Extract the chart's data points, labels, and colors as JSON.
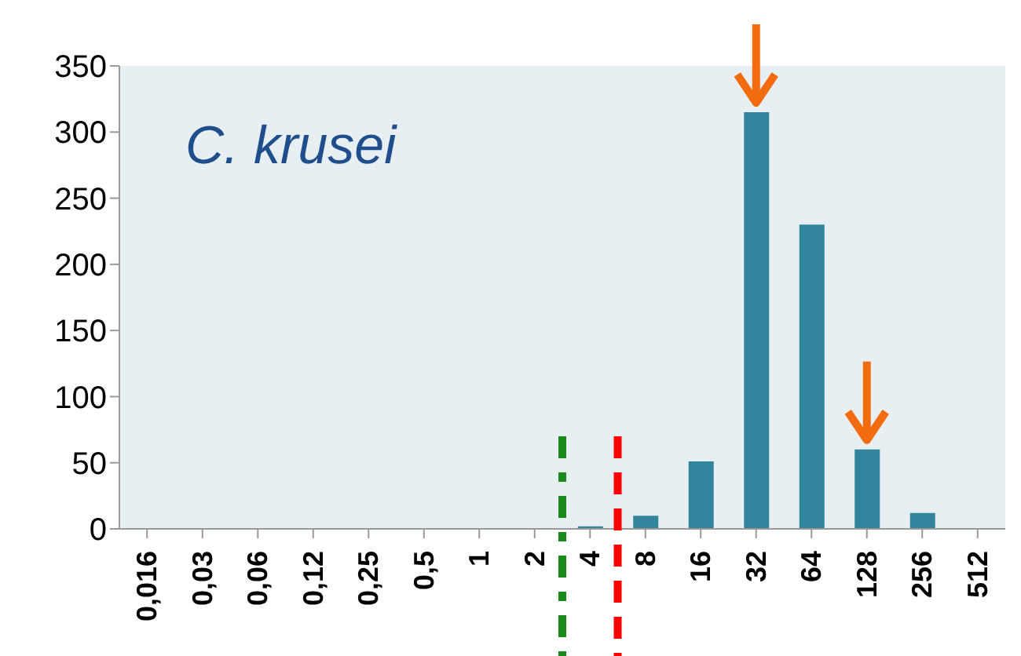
{
  "chart_data": {
    "type": "bar",
    "title": "C. krusei",
    "categories": [
      "0,016",
      "0,03",
      "0,06",
      "0,12",
      "0,25",
      "0,5",
      "1",
      "2",
      "4",
      "8",
      "16",
      "32",
      "64",
      "128",
      "256",
      "512"
    ],
    "values": [
      0,
      0,
      0,
      0,
      0,
      0,
      0,
      0,
      2,
      10,
      51,
      315,
      230,
      60,
      12,
      0
    ],
    "color": "#31849b",
    "ylim": [
      0,
      350
    ],
    "yticks": [
      0,
      50,
      100,
      150,
      200,
      250,
      300,
      350
    ]
  }
}
